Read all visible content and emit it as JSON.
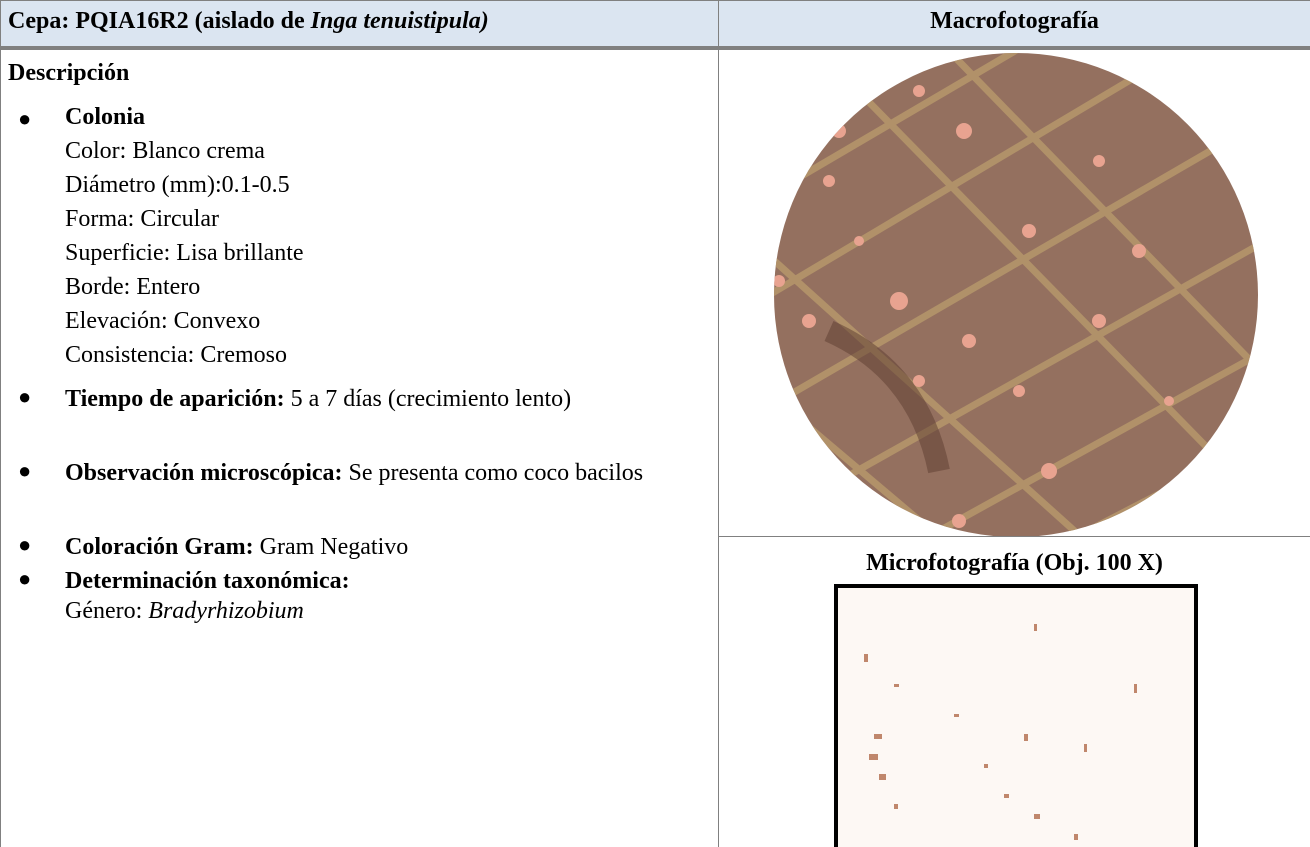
{
  "header": {
    "strain_label": "Cepa: PQIA16R2 (aislado de",
    "strain_host": "Inga tenuistipula)",
    "photo_title": "Macrofotografía"
  },
  "description": {
    "title": "Descripción",
    "colony": {
      "title": "Colonia",
      "lines": [
        "Color: Blanco crema",
        "Diámetro (mm):0.1-0.5",
        "Forma: Circular",
        "Superficie: Lisa brillante",
        "Borde: Entero",
        "Elevación: Convexo",
        "Consistencia: Cremoso"
      ]
    },
    "items": [
      {
        "label": "Tiempo de aparición:",
        "text": "5 a 7 días (crecimiento lento)"
      },
      {
        "label": "Observación microscópica:",
        "text": "Se presenta como coco bacilos"
      },
      {
        "label": "Coloración Gram:",
        "text": "Gram Negativo"
      },
      {
        "label": "Determinación taxonómica:",
        "genus_label": "Género:",
        "genus": "Bradyrhizobium"
      }
    ]
  },
  "micro_title": "Microfotografía (Obj. 100 X)"
}
